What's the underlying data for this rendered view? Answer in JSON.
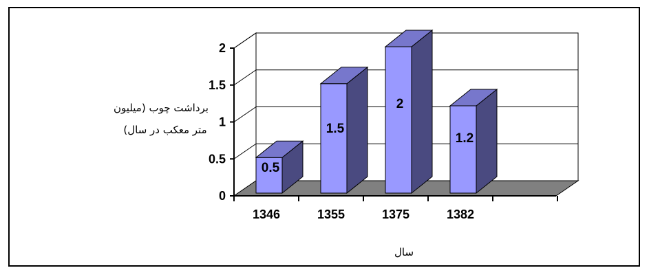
{
  "chart_data": {
    "type": "bar",
    "style": "3d-column",
    "title": "",
    "categories": [
      "1346",
      "1355",
      "1375",
      "1382"
    ],
    "values": [
      0.5,
      1.5,
      2,
      1.2
    ],
    "data_labels": [
      "0.5",
      "1.5",
      "2",
      "1.2"
    ],
    "y_ticks": [
      "0",
      "0.5",
      "1",
      "1.5",
      "2"
    ],
    "ylim": [
      0,
      2
    ],
    "ylabel_lines": [
      "برداشت چوب (میلیون",
      "متر معکب در سال)"
    ],
    "xlabel": "سال",
    "grid": true,
    "legend": "none",
    "colors": {
      "bar_front": "#9999ff",
      "bar_side": "#4a4a80",
      "bar_top": "#7777cc",
      "floor": "#808080",
      "grid": "#000000",
      "back_wall": "#ffffff"
    }
  }
}
